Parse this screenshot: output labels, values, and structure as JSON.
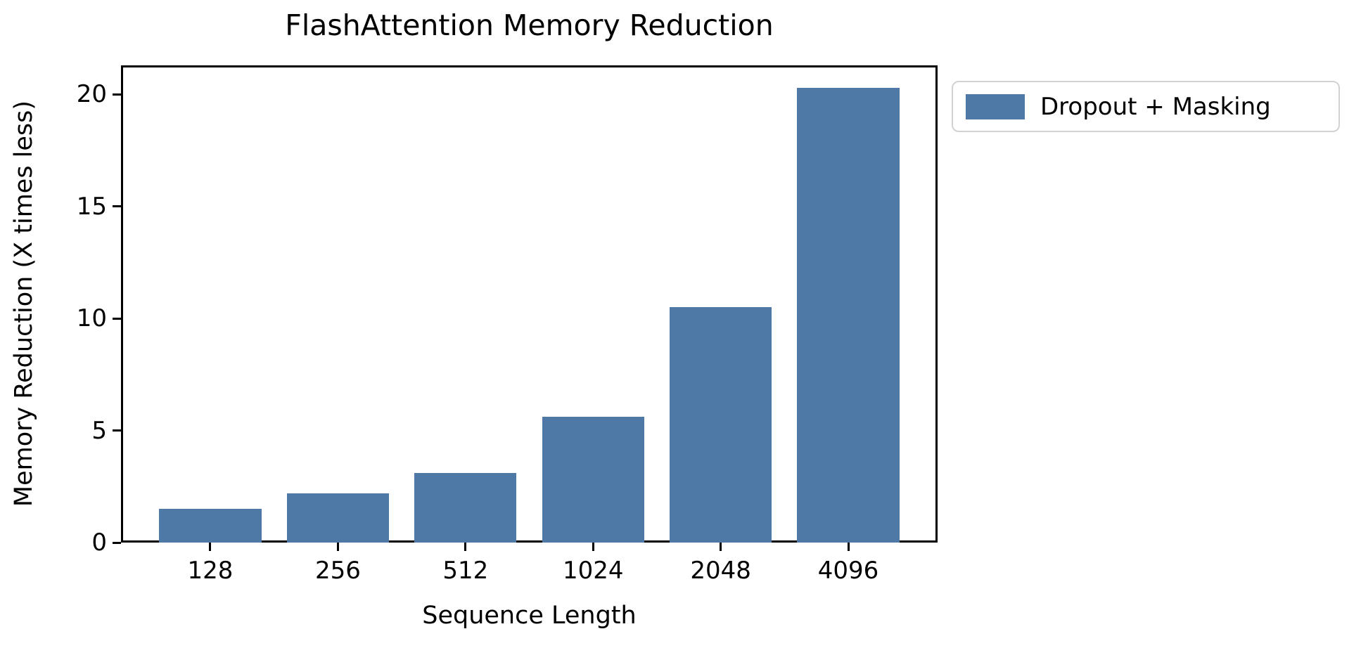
{
  "chart_data": {
    "type": "bar",
    "title": "FlashAttention Memory Reduction",
    "xlabel": "Sequence Length",
    "ylabel": "Memory Reduction (X times less)",
    "categories": [
      "128",
      "256",
      "512",
      "1024",
      "2048",
      "4096"
    ],
    "series": [
      {
        "name": "Dropout + Masking",
        "values": [
          1.5,
          2.2,
          3.1,
          5.6,
          10.5,
          20.3
        ]
      }
    ],
    "yticks": [
      0,
      5,
      10,
      15,
      20
    ],
    "ylim": [
      0,
      21.3
    ],
    "xlim_slots": [
      -0.7,
      5.7
    ],
    "bar_relative_width": 0.8,
    "grid": false,
    "legend_position": "outside-upper-right",
    "colors": {
      "bar": "#4e79a7",
      "axis": "#000000",
      "text": "#000000",
      "legend_border": "#d2d2d2",
      "background": "#ffffff"
    }
  }
}
